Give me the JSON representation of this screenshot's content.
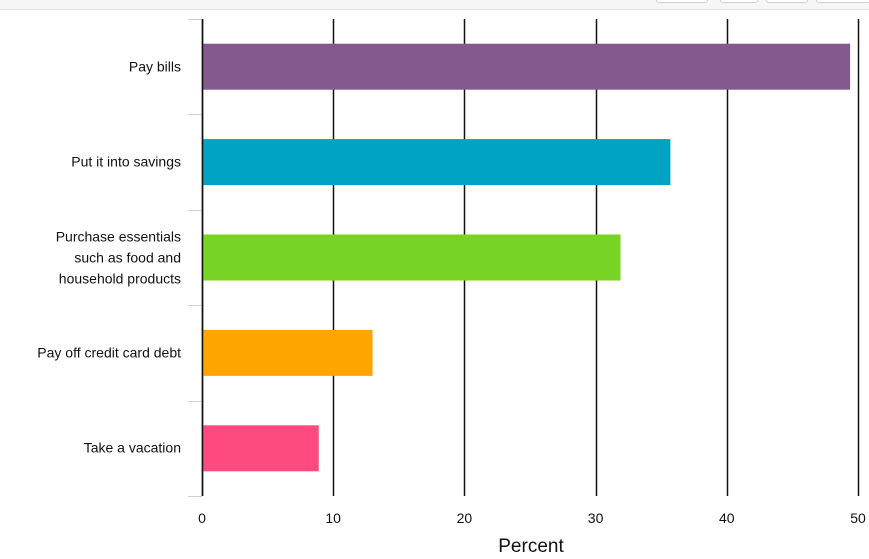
{
  "chart_data": {
    "type": "bar",
    "orientation": "horizontal",
    "categories": [
      "Pay bills",
      "Put it into savings",
      "Purchase essentials\nsuch as food and\nhousehold products",
      "Pay off credit card debt",
      "Take a vacation"
    ],
    "values": [
      49.4,
      35.7,
      31.9,
      13.0,
      8.9
    ],
    "colors": [
      "#845a8e",
      "#00a3c4",
      "#77d324",
      "#ffa500",
      "#ff4a80"
    ],
    "xlim": [
      0,
      50
    ],
    "xticks": [
      "0",
      "10",
      "20",
      "30",
      "40",
      "50"
    ],
    "xlabel": "Percent",
    "ylabel": "",
    "title": "",
    "grid": "vertical"
  }
}
